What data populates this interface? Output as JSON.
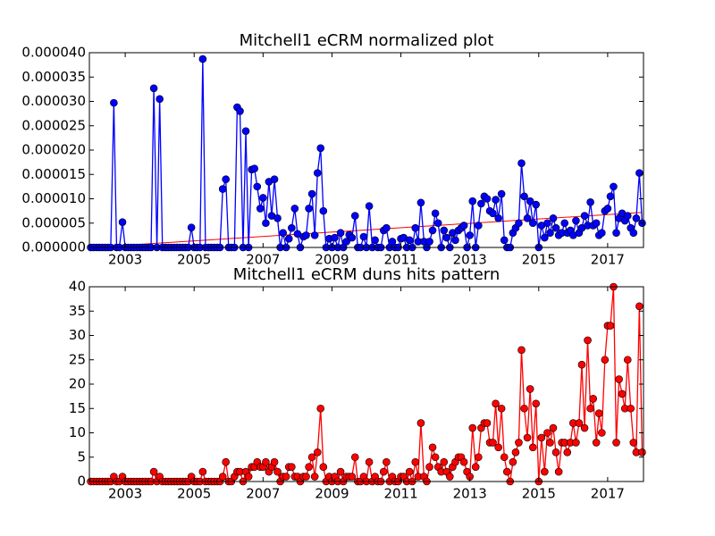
{
  "chart_data": [
    {
      "type": "line",
      "title": "Mitchell1 eCRM normalized plot",
      "x": [
        2002,
        2002.08,
        2002.17,
        2002.25,
        2002.33,
        2002.42,
        2002.5,
        2002.58,
        2002.67,
        2002.75,
        2002.83,
        2002.92,
        2003,
        2003.08,
        2003.17,
        2003.25,
        2003.33,
        2003.42,
        2003.5,
        2003.58,
        2003.67,
        2003.75,
        2003.83,
        2003.92,
        2004,
        2004.08,
        2004.17,
        2004.25,
        2004.33,
        2004.42,
        2004.5,
        2004.58,
        2004.67,
        2004.75,
        2004.83,
        2004.92,
        2005,
        2005.08,
        2005.17,
        2005.25,
        2005.33,
        2005.42,
        2005.5,
        2005.58,
        2005.67,
        2005.75,
        2005.83,
        2005.92,
        2006,
        2006.08,
        2006.17,
        2006.25,
        2006.33,
        2006.42,
        2006.5,
        2006.58,
        2006.67,
        2006.75,
        2006.83,
        2006.92,
        2007,
        2007.08,
        2007.17,
        2007.25,
        2007.33,
        2007.42,
        2007.5,
        2007.58,
        2007.67,
        2007.75,
        2007.83,
        2007.92,
        2008,
        2008.08,
        2008.17,
        2008.25,
        2008.33,
        2008.42,
        2008.5,
        2008.58,
        2008.67,
        2008.75,
        2008.83,
        2008.92,
        2009,
        2009.08,
        2009.17,
        2009.25,
        2009.33,
        2009.42,
        2009.5,
        2009.58,
        2009.67,
        2009.75,
        2009.83,
        2009.92,
        2010,
        2010.08,
        2010.17,
        2010.25,
        2010.33,
        2010.42,
        2010.5,
        2010.58,
        2010.67,
        2010.75,
        2010.83,
        2010.92,
        2011,
        2011.08,
        2011.17,
        2011.25,
        2011.33,
        2011.42,
        2011.5,
        2011.58,
        2011.67,
        2011.75,
        2011.83,
        2011.92,
        2012,
        2012.08,
        2012.17,
        2012.25,
        2012.33,
        2012.42,
        2012.5,
        2012.58,
        2012.67,
        2012.75,
        2012.83,
        2012.92,
        2013,
        2013.08,
        2013.17,
        2013.25,
        2013.33,
        2013.42,
        2013.5,
        2013.58,
        2013.67,
        2013.75,
        2013.83,
        2013.92,
        2014,
        2014.08,
        2014.17,
        2014.25,
        2014.33,
        2014.42,
        2014.5,
        2014.58,
        2014.67,
        2014.75,
        2014.83,
        2014.92,
        2015,
        2015.08,
        2015.17,
        2015.25,
        2015.33,
        2015.42,
        2015.5,
        2015.58,
        2015.67,
        2015.75,
        2015.83,
        2015.92,
        2016,
        2016.08,
        2016.17,
        2016.25,
        2016.33,
        2016.42,
        2016.5,
        2016.58,
        2016.67,
        2016.75,
        2016.83,
        2016.92,
        2017,
        2017.08,
        2017.17,
        2017.25,
        2017.33,
        2017.42,
        2017.5,
        2017.58,
        2017.67,
        2017.75,
        2017.83,
        2017.92,
        2018
      ],
      "series": [
        {
          "color": "#0000ff",
          "values": [
            0,
            0,
            0,
            0,
            0,
            0,
            0,
            0,
            2.97e-05,
            0,
            0,
            5.2e-06,
            0,
            0,
            0,
            0,
            0,
            0,
            0,
            0,
            0,
            0,
            3.27e-05,
            0,
            3.05e-05,
            0,
            0,
            0,
            0,
            0,
            0,
            0,
            0,
            0,
            0,
            4.1e-06,
            0,
            0,
            0,
            3.87e-05,
            0,
            0,
            0,
            0,
            0,
            0,
            1.2e-05,
            1.4e-05,
            0,
            0,
            0,
            2.88e-05,
            2.8e-05,
            0,
            2.39e-05,
            0,
            1.6e-05,
            1.62e-05,
            1.25e-05,
            8e-06,
            1.02e-05,
            5e-06,
            1.35e-05,
            6.5e-06,
            1.4e-05,
            6e-06,
            0,
            3e-06,
            0,
            1.8e-06,
            4e-06,
            8e-06,
            2.8e-06,
            0,
            2.2e-06,
            2.5e-06,
            8e-06,
            1.1e-05,
            2.5e-06,
            1.53e-05,
            2.04e-05,
            7.5e-06,
            0,
            1.8e-06,
            0,
            2e-06,
            0,
            3e-06,
            0,
            1.2e-06,
            2.6e-06,
            2e-06,
            6.5e-06,
            0,
            0,
            2.2e-06,
            0,
            8.5e-06,
            0,
            1.5e-06,
            0,
            0,
            3.5e-06,
            4e-06,
            0,
            1.2e-06,
            0,
            0,
            1.8e-06,
            2e-06,
            0,
            1.5e-06,
            0,
            4e-06,
            1.2e-06,
            9.2e-06,
            1.2e-06,
            0,
            1.2e-06,
            3.5e-06,
            7e-06,
            5e-06,
            0,
            3.5e-06,
            2e-06,
            0,
            3e-06,
            1.5e-06,
            3.5e-06,
            4e-06,
            4.5e-06,
            0,
            2.5e-06,
            9.5e-06,
            0,
            4.5e-06,
            9e-06,
            1.05e-05,
            1e-05,
            7.5e-06,
            7e-06,
            9.8e-06,
            6e-06,
            1.1e-05,
            1.5e-06,
            0,
            0,
            3e-06,
            4e-06,
            5e-06,
            1.73e-05,
            1.05e-05,
            6e-06,
            9.5e-06,
            5e-06,
            8.8e-06,
            0,
            4.5e-06,
            2e-06,
            5e-06,
            3e-06,
            6e-06,
            4e-06,
            2.5e-06,
            3e-06,
            5e-06,
            3e-06,
            3.5e-06,
            2.5e-06,
            5.5e-06,
            3e-06,
            4e-06,
            6.5e-06,
            4.5e-06,
            9.3e-06,
            4.5e-06,
            5e-06,
            2.5e-06,
            3e-06,
            7.5e-06,
            8e-06,
            1.05e-05,
            1.25e-05,
            3e-06,
            6e-06,
            7e-06,
            5.5e-06,
            6.5e-06,
            4e-06,
            3e-06,
            6e-06,
            1.53e-05,
            5e-06
          ]
        }
      ],
      "trend": {
        "color": "#ff0000",
        "x": [
          2002,
          2018
        ],
        "values": [
          0,
          7.2e-06
        ]
      },
      "xlim": [
        2001.96,
        2018.04
      ],
      "xticks": [
        2003,
        2005,
        2007,
        2009,
        2011,
        2013,
        2015,
        2017
      ],
      "ylim": [
        0,
        4e-05
      ],
      "yticks": [
        {
          "value": 0,
          "label": "0.000000"
        },
        {
          "value": 5e-06,
          "label": "0.000005"
        },
        {
          "value": 1e-05,
          "label": "0.000010"
        },
        {
          "value": 1.5e-05,
          "label": "0.000015"
        },
        {
          "value": 2e-05,
          "label": "0.000020"
        },
        {
          "value": 2.5e-05,
          "label": "0.000025"
        },
        {
          "value": 3e-05,
          "label": "0.000030"
        },
        {
          "value": 3.5e-05,
          "label": "0.000035"
        },
        {
          "value": 4e-05,
          "label": "0.000040"
        }
      ]
    },
    {
      "type": "line",
      "title": "Mitchell1 eCRM duns hits pattern",
      "x": [
        2002,
        2002.08,
        2002.17,
        2002.25,
        2002.33,
        2002.42,
        2002.5,
        2002.58,
        2002.67,
        2002.75,
        2002.83,
        2002.92,
        2003,
        2003.08,
        2003.17,
        2003.25,
        2003.33,
        2003.42,
        2003.5,
        2003.58,
        2003.67,
        2003.75,
        2003.83,
        2003.92,
        2004,
        2004.08,
        2004.17,
        2004.25,
        2004.33,
        2004.42,
        2004.5,
        2004.58,
        2004.67,
        2004.75,
        2004.83,
        2004.92,
        2005,
        2005.08,
        2005.17,
        2005.25,
        2005.33,
        2005.42,
        2005.5,
        2005.58,
        2005.67,
        2005.75,
        2005.83,
        2005.92,
        2006,
        2006.08,
        2006.17,
        2006.25,
        2006.33,
        2006.42,
        2006.5,
        2006.58,
        2006.67,
        2006.75,
        2006.83,
        2006.92,
        2007,
        2007.08,
        2007.17,
        2007.25,
        2007.33,
        2007.42,
        2007.5,
        2007.58,
        2007.67,
        2007.75,
        2007.83,
        2007.92,
        2008,
        2008.08,
        2008.17,
        2008.25,
        2008.33,
        2008.42,
        2008.5,
        2008.58,
        2008.67,
        2008.75,
        2008.83,
        2008.92,
        2009,
        2009.08,
        2009.17,
        2009.25,
        2009.33,
        2009.42,
        2009.5,
        2009.58,
        2009.67,
        2009.75,
        2009.83,
        2009.92,
        2010,
        2010.08,
        2010.17,
        2010.25,
        2010.33,
        2010.42,
        2010.5,
        2010.58,
        2010.67,
        2010.75,
        2010.83,
        2010.92,
        2011,
        2011.08,
        2011.17,
        2011.25,
        2011.33,
        2011.42,
        2011.5,
        2011.58,
        2011.67,
        2011.75,
        2011.83,
        2011.92,
        2012,
        2012.08,
        2012.17,
        2012.25,
        2012.33,
        2012.42,
        2012.5,
        2012.58,
        2012.67,
        2012.75,
        2012.83,
        2012.92,
        2013,
        2013.08,
        2013.17,
        2013.25,
        2013.33,
        2013.42,
        2013.5,
        2013.58,
        2013.67,
        2013.75,
        2013.83,
        2013.92,
        2014,
        2014.08,
        2014.17,
        2014.25,
        2014.33,
        2014.42,
        2014.5,
        2014.58,
        2014.67,
        2014.75,
        2014.83,
        2014.92,
        2015,
        2015.08,
        2015.17,
        2015.25,
        2015.33,
        2015.42,
        2015.5,
        2015.58,
        2015.67,
        2015.75,
        2015.83,
        2015.92,
        2016,
        2016.08,
        2016.17,
        2016.25,
        2016.33,
        2016.42,
        2016.5,
        2016.58,
        2016.67,
        2016.75,
        2016.83,
        2016.92,
        2017,
        2017.08,
        2017.17,
        2017.25,
        2017.33,
        2017.42,
        2017.5,
        2017.58,
        2017.67,
        2017.75,
        2017.83,
        2017.92,
        2018
      ],
      "series": [
        {
          "color": "#ff0000",
          "values": [
            0,
            0,
            0,
            0,
            0,
            0,
            0,
            0,
            1,
            0,
            0,
            1,
            0,
            0,
            0,
            0,
            0,
            0,
            0,
            0,
            0,
            0,
            2,
            0,
            1,
            0,
            0,
            0,
            0,
            0,
            0,
            0,
            0,
            0,
            0,
            1,
            0,
            0,
            0,
            2,
            0,
            0,
            0,
            0,
            0,
            0,
            1,
            4,
            0,
            0,
            1,
            2,
            2,
            0,
            2,
            1,
            3,
            3,
            4,
            3,
            3,
            4,
            2,
            3,
            4,
            2,
            0,
            1,
            1,
            3,
            3,
            1,
            1,
            0,
            1,
            1,
            3,
            5,
            1,
            6,
            15,
            3,
            0,
            1,
            0,
            1,
            0,
            2,
            0,
            1,
            1,
            1,
            5,
            0,
            0,
            1,
            0,
            4,
            0,
            1,
            0,
            0,
            2,
            4,
            0,
            1,
            0,
            0,
            1,
            1,
            0,
            2,
            0,
            4,
            1,
            12,
            1,
            0,
            3,
            7,
            5,
            3,
            2,
            4,
            2,
            1,
            3,
            4,
            5,
            5,
            4,
            2,
            1,
            11,
            3,
            5,
            11,
            12,
            12,
            8,
            8,
            16,
            7,
            15,
            5,
            2,
            0,
            4,
            6,
            8,
            27,
            15,
            9,
            19,
            7,
            16,
            0,
            9,
            2,
            10,
            8,
            11,
            6,
            2,
            8,
            8,
            6,
            8,
            12,
            8,
            12,
            24,
            11,
            29,
            15,
            17,
            8,
            14,
            10,
            25,
            32,
            32,
            40,
            8,
            21,
            18,
            15,
            25,
            15,
            8,
            6,
            36,
            6
          ]
        }
      ],
      "xlim": [
        2001.96,
        2018.04
      ],
      "xticks": [
        2003,
        2005,
        2007,
        2009,
        2011,
        2013,
        2015,
        2017
      ],
      "ylim": [
        0,
        40
      ],
      "yticks": [
        0,
        5,
        10,
        15,
        20,
        25,
        30,
        35,
        40
      ]
    }
  ]
}
